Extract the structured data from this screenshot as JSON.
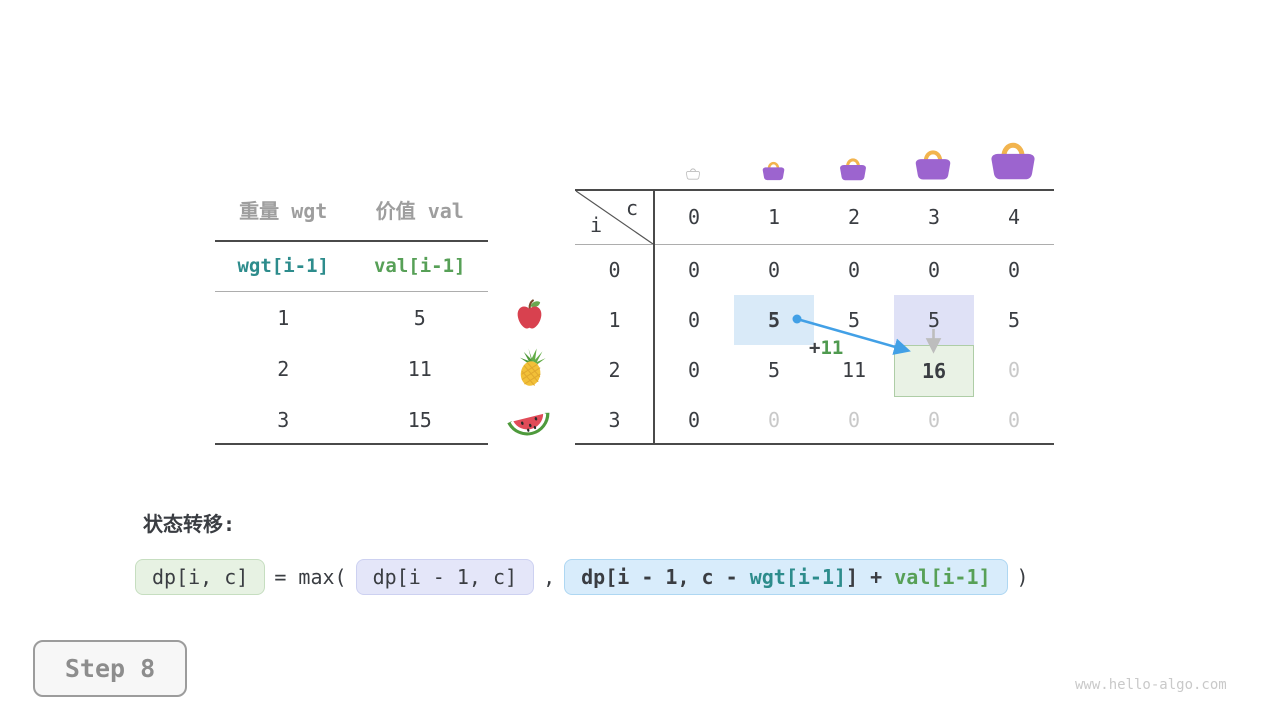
{
  "items_table": {
    "headers": [
      "重量 wgt",
      "价值 val"
    ],
    "sub_headers": [
      "wgt[i-1]",
      "val[i-1]"
    ],
    "rows": [
      {
        "wgt": "1",
        "val": "5",
        "icon": "apple-icon"
      },
      {
        "wgt": "2",
        "val": "11",
        "icon": "pineapple-icon"
      },
      {
        "wgt": "3",
        "val": "15",
        "icon": "watermelon-icon"
      }
    ]
  },
  "dp_table": {
    "corner": {
      "col_var": "c",
      "row_var": "i"
    },
    "col_headers": [
      "0",
      "1",
      "2",
      "3",
      "4"
    ],
    "row_headers": [
      "0",
      "1",
      "2",
      "3"
    ],
    "cells": [
      [
        "0",
        "0",
        "0",
        "0",
        "0"
      ],
      [
        "0",
        "5",
        "5",
        "5",
        "5"
      ],
      [
        "0",
        "5",
        "11",
        "16",
        "0"
      ],
      [
        "0",
        "0",
        "0",
        "0",
        "0"
      ]
    ],
    "cell_states": [
      [
        "",
        "",
        "",
        "",
        ""
      ],
      [
        "",
        "hl-blue bold",
        "",
        "hl-lav",
        ""
      ],
      [
        "",
        "",
        "",
        "hl-green bold",
        "muted"
      ],
      [
        "",
        "muted",
        "muted",
        "muted",
        "muted"
      ]
    ],
    "bag_icons": [
      "bag-outline-icon",
      "bag-icon",
      "bag-icon",
      "bag-icon",
      "bag-icon"
    ],
    "annotation": {
      "plus": "+",
      "value": "11"
    }
  },
  "transition": {
    "title": "状态转移:",
    "lhs": "dp[i, c]",
    "operator": "= max(",
    "arg1": "dp[i - 1, c]",
    "comma": ",",
    "arg2_parts": {
      "p1": "dp[i - 1, c - ",
      "p2": "wgt[i-1]",
      "p3": "] + ",
      "p4": "val[i-1]"
    },
    "close": ")"
  },
  "step_badge": "Step 8",
  "watermark": "www.hello-algo.com",
  "colors": {
    "accent_teal": "#2d8c8c",
    "accent_green": "#57a057",
    "arrow_blue": "#42a0e6",
    "arrow_gray": "#bdbdbd",
    "bag_purple": "#9c64cf",
    "bag_handle": "#f2b44e",
    "highlight_blue": "#d9eaf8",
    "highlight_lavender": "#dfe1f6",
    "highlight_green": "#e9f2e5",
    "muted_text": "#c9c9c9"
  }
}
